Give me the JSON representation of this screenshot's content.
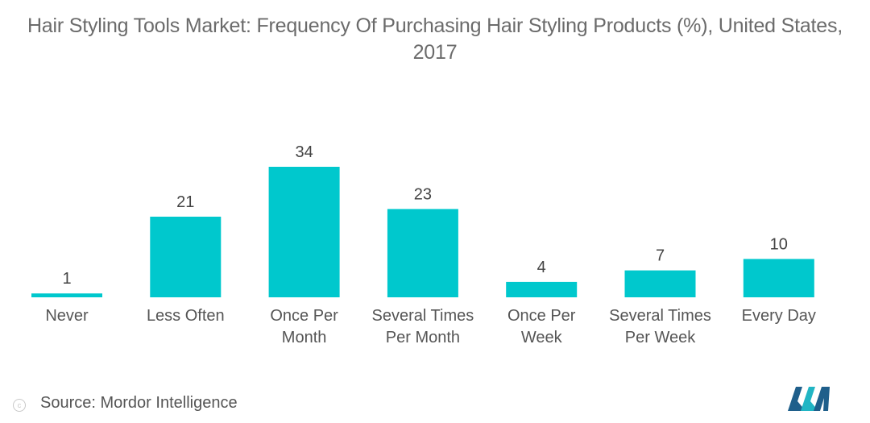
{
  "title_line1": "Hair Styling Tools Market: Frequency Of Purchasing Hair Styling Products (%), United States,",
  "title_line2": "2017",
  "source": "Source: Mordor Intelligence",
  "colors": {
    "bar": "#00c8cd",
    "text": "#555555",
    "title": "#6b6b6b",
    "logo_dark": "#1f5f8b",
    "logo_teal": "#21b5c4"
  },
  "chart_data": {
    "type": "bar",
    "title": "Hair Styling Tools Market: Frequency Of Purchasing Hair Styling Products (%), United States, 2017",
    "categories": [
      [
        "Never"
      ],
      [
        "Less Often"
      ],
      [
        "Once Per",
        "Month"
      ],
      [
        "Several Times",
        "Per Month"
      ],
      [
        "Once Per",
        "Week"
      ],
      [
        "Several Times",
        "Per Week"
      ],
      [
        "Every Day"
      ]
    ],
    "values": [
      1,
      21,
      34,
      23,
      4,
      7,
      10
    ],
    "data_labels": [
      "1",
      "21",
      "34",
      "23",
      "4",
      "7",
      "10"
    ],
    "xlabel": "",
    "ylabel": "",
    "ylim": [
      0,
      34
    ],
    "grid": false,
    "legend": "none"
  }
}
